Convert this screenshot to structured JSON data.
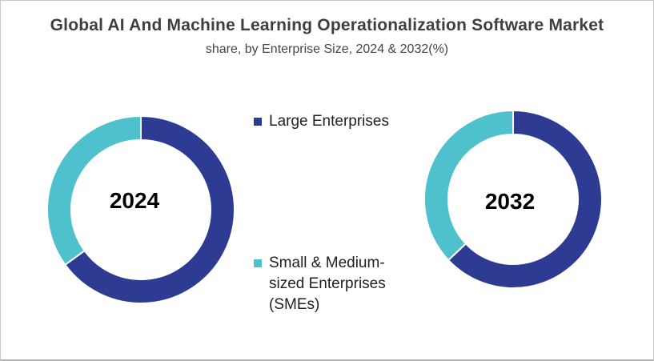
{
  "header": {
    "title": "Global AI And Machine Learning Operationalization Software Market",
    "subtitle": "share, by Enterprise Size, 2024 & 2032(%)"
  },
  "legend": {
    "items": [
      {
        "label": "Large Enterprises",
        "color": "#2e3b92"
      },
      {
        "label": "Small & Medium-sized Enterprises (SMEs)",
        "color": "#4fc1cc"
      }
    ]
  },
  "chart_data": [
    {
      "type": "pie",
      "subtype": "donut",
      "center_label": "2024",
      "categories": [
        "Large Enterprises",
        "Small & Medium-sized Enterprises (SMEs)"
      ],
      "values": [
        65,
        35
      ],
      "unit": "%",
      "colors": [
        "#2e3b92",
        "#4fc1cc"
      ],
      "start_angle_deg": 0,
      "direction": "clockwise",
      "legend_position": "right",
      "data_labels": false
    },
    {
      "type": "pie",
      "subtype": "donut",
      "center_label": "2032",
      "categories": [
        "Large Enterprises",
        "Small & Medium-sized Enterprises (SMEs)"
      ],
      "values": [
        63,
        37
      ],
      "unit": "%",
      "colors": [
        "#2e3b92",
        "#4fc1cc"
      ],
      "start_angle_deg": 0,
      "direction": "clockwise",
      "legend_position": "left",
      "data_labels": false
    }
  ]
}
